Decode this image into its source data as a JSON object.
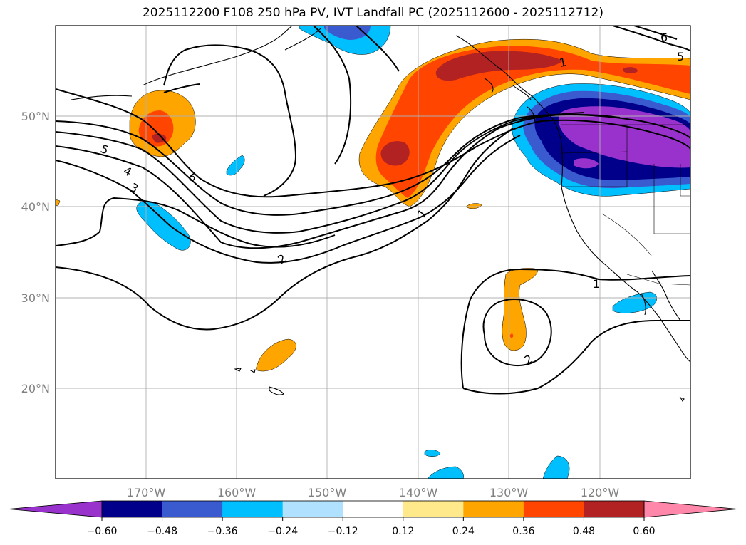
{
  "title": "2025112200 F108 250 hPa PV, IVT Landfall PC (2025112600 - 2025112712)",
  "lon_labels": [
    "170°W",
    "160°W",
    "150°W",
    "140°W",
    "130°W",
    "120°W"
  ],
  "lat_labels": [
    "50°N",
    "40°N",
    "30°N",
    "20°N"
  ],
  "colorbar": {
    "ticks": [
      "−0.60",
      "−0.48",
      "−0.36",
      "−0.24",
      "−0.12",
      "0.12",
      "0.24",
      "0.36",
      "0.48",
      "0.60"
    ],
    "colors": [
      "#9932cc",
      "#00008b",
      "#3a5bd0",
      "#00bfff",
      "#b0e2ff",
      "#ffffff",
      "#ffe98a",
      "#ffa500",
      "#ff4500",
      "#b22222",
      "#ff88aa"
    ]
  },
  "contour_labels": [
    "5",
    "4",
    "3",
    "6",
    "2",
    "1",
    "1",
    "1",
    "2",
    "6",
    "5"
  ],
  "colors": {
    "positive_low": "#ffa500",
    "positive_mid": "#ff4500",
    "positive_high": "#b22222",
    "negative_low": "#00bfff",
    "negative_mid": "#3a5bd0",
    "negative_high": "#00008b",
    "negative_max": "#9932cc"
  }
}
